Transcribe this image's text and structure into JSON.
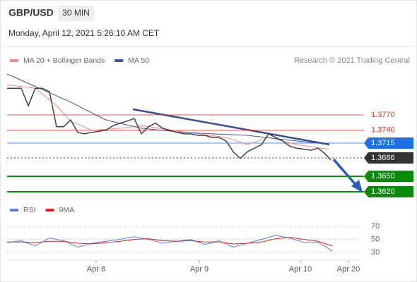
{
  "header": {
    "symbol": "GBP/USD",
    "timeframe": "30 MIN",
    "datetime": "Monday, April 12, 2021 5:26:10 AM CET"
  },
  "chart_data": [
    {
      "type": "line",
      "credit": "Research © 2021 Trading Central",
      "color": "#444444",
      "x": [
        0,
        4,
        6,
        8,
        10,
        12,
        14,
        16,
        18,
        20,
        22,
        24,
        26,
        28,
        30,
        32,
        34,
        36,
        38,
        40,
        42,
        44,
        46,
        48,
        50,
        52,
        54,
        56,
        58,
        60,
        62,
        64,
        66,
        68,
        70,
        72,
        74,
        76,
        78,
        80,
        82,
        84,
        86,
        88,
        90,
        91.6
      ],
      "values": [
        1.3822,
        1.3822,
        1.3788,
        1.3822,
        1.3822,
        1.3815,
        1.3747,
        1.3747,
        1.376,
        1.3736,
        1.3733,
        1.3736,
        1.3738,
        1.374,
        1.3749,
        1.3754,
        1.3758,
        1.3763,
        1.3733,
        1.3747,
        1.3754,
        1.3744,
        1.374,
        1.3736,
        1.3733,
        1.3733,
        1.373,
        1.373,
        1.3726,
        1.3726,
        1.3719,
        1.3698,
        1.3685,
        1.3698,
        1.3705,
        1.3712,
        1.3733,
        1.3726,
        1.3719,
        1.3709,
        1.3705,
        1.3703,
        1.3701,
        1.3705,
        1.3694,
        1.3682
      ],
      "series": [
        {
          "name": "MA 20 + Bollinger Bands",
          "color": "#f28b8b",
          "x": [
            0,
            8,
            14,
            18,
            24,
            32,
            38,
            44,
            54,
            62,
            68,
            74,
            82,
            91
          ],
          "values": [
            1.3829,
            1.3822,
            1.3788,
            1.3758,
            1.374,
            1.3744,
            1.3749,
            1.3743,
            1.3733,
            1.3726,
            1.3712,
            1.3726,
            1.3712,
            1.3703
          ]
        },
        {
          "name": "MA 50",
          "color": "#3a5a9a",
          "x": [
            0,
            18,
            28,
            38,
            48,
            58,
            68,
            78,
            88,
            91
          ],
          "values": [
            1.385,
            1.3795,
            1.376,
            1.3744,
            1.3737,
            1.3733,
            1.373,
            1.3722,
            1.3715,
            1.3712
          ]
        }
      ],
      "levels": [
        {
          "value": 1.377,
          "label": "1.3770",
          "color": "#e03030"
        },
        {
          "value": 1.374,
          "label": "1.3740",
          "color": "#e03030"
        },
        {
          "value": 1.3715,
          "label": "1.3715",
          "color": "#1f6fe5"
        },
        {
          "value": 1.3686,
          "label": "1.3686",
          "color": "#333333"
        },
        {
          "value": 1.365,
          "label": "1.3650",
          "color": "#0a8a0a"
        },
        {
          "value": 1.362,
          "label": "1.3620",
          "color": "#0a8a0a"
        }
      ],
      "xlim": [
        0,
        100
      ],
      "ylim": [
        1.36,
        1.386
      ]
    },
    {
      "type": "line",
      "series": [
        {
          "name": "RSI",
          "color": "#5b7fd6",
          "x": [
            0,
            4,
            8,
            12,
            16,
            20,
            24,
            28,
            32,
            36,
            40,
            44,
            48,
            52,
            56,
            60,
            64,
            68,
            72,
            76,
            80,
            84,
            88,
            92
          ],
          "values": [
            45,
            48,
            40,
            52,
            48,
            38,
            44,
            47,
            50,
            54,
            50,
            44,
            47,
            50,
            42,
            48,
            38,
            44,
            50,
            56,
            52,
            45,
            46,
            32
          ]
        },
        {
          "name": "9MA",
          "color": "#e02020",
          "x": [
            0,
            4,
            8,
            12,
            16,
            20,
            24,
            28,
            32,
            36,
            40,
            44,
            48,
            52,
            56,
            60,
            64,
            68,
            72,
            76,
            80,
            84,
            88,
            92
          ],
          "values": [
            46,
            46,
            45,
            47,
            47,
            44,
            43,
            45,
            47,
            50,
            51,
            48,
            47,
            48,
            46,
            46,
            43,
            44,
            46,
            51,
            53,
            50,
            47,
            40
          ]
        }
      ],
      "xlim": [
        0,
        100
      ],
      "ylim": [
        20,
        80
      ],
      "yticks": [
        70,
        50,
        30
      ],
      "grid": true,
      "xticks": [
        {
          "value": 25.2,
          "label": "Apr 8"
        },
        {
          "value": 54.4,
          "label": "Apr 9"
        },
        {
          "value": 83,
          "label": "Apr 10"
        },
        {
          "value": 96.6,
          "label": "Apr 20"
        }
      ]
    }
  ]
}
